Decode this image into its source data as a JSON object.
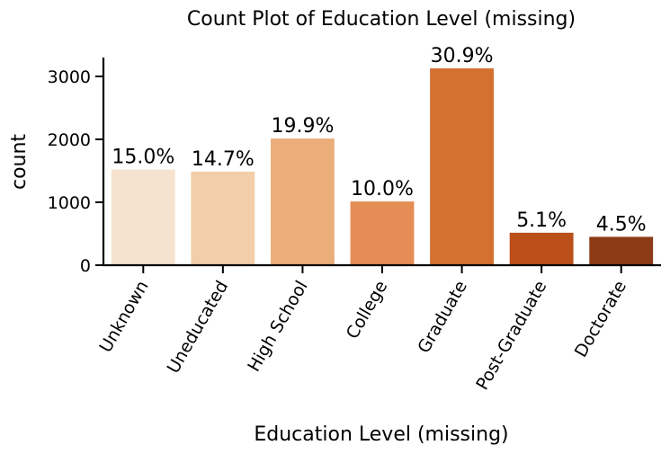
{
  "chart_data": {
    "type": "bar",
    "title": "Count Plot of Education Level (missing)",
    "xlabel": "Education Level (missing)",
    "ylabel": "count",
    "categories": [
      "Unknown",
      "Uneducated",
      "High School",
      "College",
      "Graduate",
      "Post-Graduate",
      "Doctorate"
    ],
    "values": [
      1519,
      1487,
      2013,
      1013,
      3128,
      516,
      451
    ],
    "data_labels": [
      "15.0%",
      "14.7%",
      "19.9%",
      "10.0%",
      "30.9%",
      "5.1%",
      "4.5%"
    ],
    "colors": [
      "#f6e3cf",
      "#f2cfaa",
      "#ebae7b",
      "#e48d55",
      "#d47030",
      "#bb4f19",
      "#8d3b16"
    ],
    "ylim": [
      0,
      3300
    ],
    "yticks": [
      0,
      1000,
      2000,
      3000
    ],
    "ytick_labels": [
      "0",
      "1000",
      "2000",
      "3000"
    ],
    "grid": false,
    "legend": "none"
  }
}
